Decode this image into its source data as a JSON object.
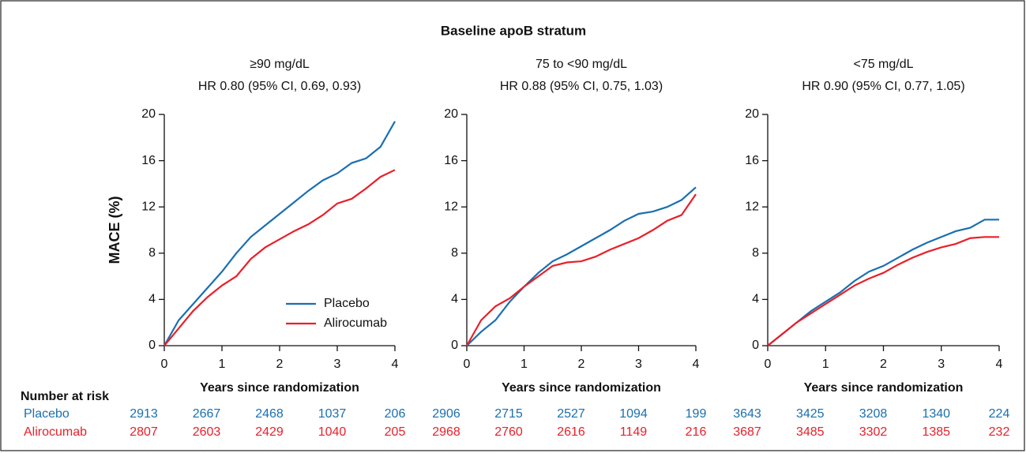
{
  "title": "Baseline apoB stratum",
  "chart_data": [
    {
      "type": "line",
      "title": "≥90 mg/dL",
      "subtitle": "HR 0.80 (95% CI, 0.69, 0.93)",
      "x_label": "Years since randomization",
      "y_label": "MACE (%)",
      "legend": "lower right",
      "x": [
        0,
        0.25,
        0.5,
        0.75,
        1,
        1.25,
        1.5,
        1.75,
        2,
        2.25,
        2.5,
        2.75,
        3,
        3.25,
        3.5,
        3.75,
        4
      ],
      "series": [
        {
          "name": "Placebo",
          "color": "#1a6fb0",
          "values": [
            0,
            2.2,
            3.6,
            5.0,
            6.4,
            8.0,
            9.4,
            10.4,
            11.4,
            12.4,
            13.4,
            14.3,
            14.9,
            15.8,
            16.2,
            17.2,
            19.4
          ]
        },
        {
          "name": "Alirocumab",
          "color": "#e8202a",
          "values": [
            0,
            1.5,
            3.0,
            4.2,
            5.2,
            6.0,
            7.5,
            8.5,
            9.2,
            9.9,
            10.5,
            11.3,
            12.3,
            12.7,
            13.6,
            14.6,
            15.2
          ]
        }
      ],
      "xlim": [
        0,
        4
      ],
      "xticks": [
        0,
        1,
        2,
        3,
        4
      ],
      "ylim": [
        0,
        20
      ],
      "yticks": [
        0,
        4,
        8,
        12,
        16,
        20
      ]
    },
    {
      "type": "line",
      "title": "75 to <90 mg/dL",
      "subtitle": "HR 0.88 (95% CI, 0.75, 1.03)",
      "x_label": "Years since randomization",
      "x": [
        0,
        0.25,
        0.5,
        0.75,
        1,
        1.25,
        1.5,
        1.75,
        2,
        2.25,
        2.5,
        2.75,
        3,
        3.25,
        3.5,
        3.75,
        4
      ],
      "series": [
        {
          "color": "#1a6fb0",
          "values": [
            0,
            1.2,
            2.2,
            3.8,
            5.1,
            6.3,
            7.3,
            7.9,
            8.6,
            9.3,
            10.0,
            10.8,
            11.4,
            11.6,
            12.0,
            12.6,
            13.7
          ]
        },
        {
          "color": "#e8202a",
          "values": [
            0,
            2.2,
            3.4,
            4.1,
            5.1,
            6.0,
            6.9,
            7.2,
            7.3,
            7.7,
            8.3,
            8.8,
            9.3,
            10.0,
            10.8,
            11.3,
            13.1
          ]
        }
      ],
      "xlim": [
        0,
        4
      ],
      "xticks": [
        0,
        1,
        2,
        3,
        4
      ],
      "ylim": [
        0,
        20
      ],
      "yticks": [
        0,
        4,
        8,
        12,
        16,
        20
      ]
    },
    {
      "type": "line",
      "title": "<75 mg/dL",
      "subtitle": "HR 0.90 (95% CI, 0.77, 1.05)",
      "x_label": "Years since randomization",
      "x": [
        0,
        0.25,
        0.5,
        0.75,
        1,
        1.25,
        1.5,
        1.75,
        2,
        2.25,
        2.5,
        2.75,
        3,
        3.25,
        3.5,
        3.75,
        4
      ],
      "series": [
        {
          "color": "#1a6fb0",
          "values": [
            0,
            1.0,
            2.0,
            3.0,
            3.8,
            4.6,
            5.6,
            6.4,
            6.9,
            7.6,
            8.3,
            8.9,
            9.4,
            9.9,
            10.2,
            10.9,
            10.9
          ]
        },
        {
          "color": "#e8202a",
          "values": [
            0,
            1.0,
            2.0,
            2.8,
            3.6,
            4.4,
            5.2,
            5.8,
            6.3,
            7.0,
            7.6,
            8.1,
            8.5,
            8.8,
            9.3,
            9.4,
            9.4
          ]
        }
      ],
      "xlim": [
        0,
        4
      ],
      "xticks": [
        0,
        1,
        2,
        3,
        4
      ],
      "ylim": [
        0,
        20
      ],
      "yticks": [
        0,
        4,
        8,
        12,
        16,
        20
      ]
    }
  ],
  "risk_table": {
    "title": "Number at risk",
    "rows": [
      {
        "name": "Placebo",
        "color": "#1a6fb0",
        "values": [
          [
            2913,
            2667,
            2468,
            1037,
            206
          ],
          [
            2906,
            2715,
            2527,
            1094,
            199
          ],
          [
            3643,
            3425,
            3208,
            1340,
            224
          ]
        ]
      },
      {
        "name": "Alirocumab",
        "color": "#e8202a",
        "values": [
          [
            2807,
            2603,
            2429,
            1040,
            205
          ],
          [
            2968,
            2760,
            2616,
            1149,
            216
          ],
          [
            3687,
            3485,
            3302,
            1385,
            232
          ]
        ]
      }
    ]
  }
}
